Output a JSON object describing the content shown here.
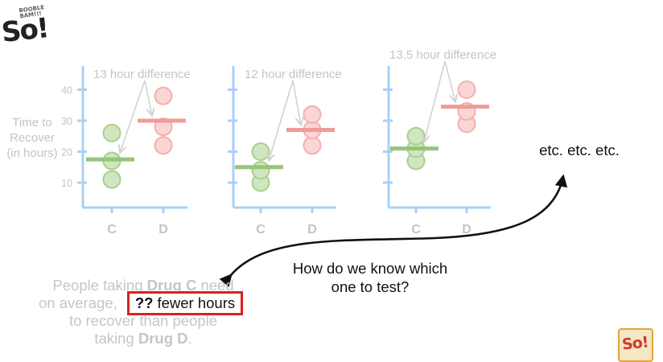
{
  "logo": {
    "top_text": "BOOBLE BAM!!!",
    "mark": "So!"
  },
  "y_axis_label": [
    "Time to",
    "Recover",
    "(in hours)"
  ],
  "y_ticks": [
    10,
    20,
    30,
    40
  ],
  "x_categories": [
    "C",
    "D"
  ],
  "panels": [
    {
      "label": "13 hour difference",
      "c_mean": 17.5,
      "d_mean": 30,
      "c_points": [
        11,
        17,
        26
      ],
      "d_points": [
        22,
        28,
        38
      ]
    },
    {
      "label": "12 hour difference",
      "c_mean": 15,
      "d_mean": 27,
      "c_points": [
        10,
        14,
        20
      ],
      "d_points": [
        22,
        27,
        32
      ]
    },
    {
      "label": "13.5 hour difference",
      "c_mean": 21,
      "d_mean": 34.5,
      "c_points": [
        17,
        21,
        25
      ],
      "d_points": [
        29,
        33,
        40
      ]
    }
  ],
  "etc_text": "etc. etc. etc.",
  "question": [
    "How do we know which",
    "one to test?"
  ],
  "bottom_text": {
    "line1_prefix": "People taking ",
    "drug_c": "Drug C",
    "line1_suffix": " need",
    "line2": "on average,",
    "line3": "to recover than people",
    "line4_prefix": "taking ",
    "drug_d": "Drug D",
    "line4_suffix": "."
  },
  "highlight": {
    "marks": "??",
    "text": "fewer hours"
  },
  "colors": {
    "axis": "#a9d0f5",
    "control": "#a8d08d",
    "control_mean": "#95c47a",
    "drug": "#f3b0ad",
    "drug_mean": "#ee9c98",
    "highlight_border": "#d8221e"
  }
}
